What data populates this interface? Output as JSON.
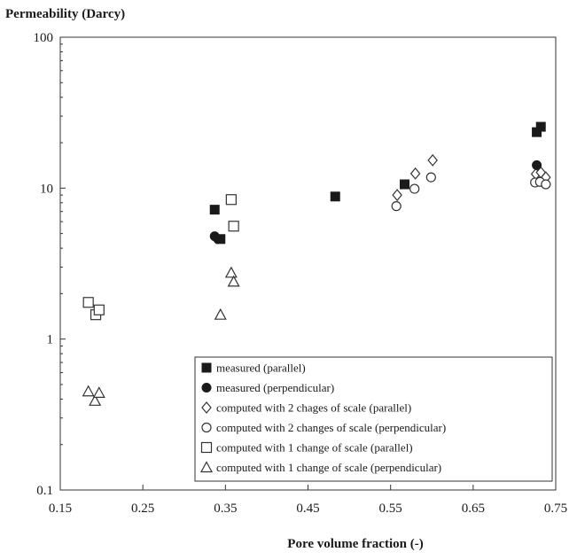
{
  "chart_data": {
    "type": "scatter",
    "title": "",
    "ylabel": "Permeability (Darcy)",
    "xlabel": "Pore volume fraction (-)",
    "xlim": [
      0.15,
      0.75
    ],
    "ylim": [
      0.1,
      100
    ],
    "yscale": "log",
    "grid": false,
    "legend_position": "bottom-right",
    "xticks": [
      "0.15",
      "0.25",
      "0.35",
      "0.45",
      "0.55",
      "0.65",
      "0.75"
    ],
    "yticks": [
      "0.1",
      "1",
      "10",
      "100"
    ],
    "series": [
      {
        "name": "measured (parallel)",
        "marker": "filled-square",
        "points": [
          [
            0.337,
            7.2
          ],
          [
            0.344,
            4.6
          ],
          [
            0.483,
            8.8
          ],
          [
            0.567,
            10.6
          ],
          [
            0.727,
            23.5
          ],
          [
            0.732,
            25.5
          ]
        ]
      },
      {
        "name": "measured (perpendicular)",
        "marker": "filled-circle",
        "points": [
          [
            0.337,
            4.8
          ],
          [
            0.341,
            4.6
          ],
          [
            0.727,
            14.2
          ]
        ]
      },
      {
        "name": "computed with 2 chages of scale (parallel)",
        "marker": "open-diamond",
        "points": [
          [
            0.558,
            9.0
          ],
          [
            0.58,
            12.5
          ],
          [
            0.601,
            15.3
          ],
          [
            0.726,
            12.4
          ],
          [
            0.732,
            12.7
          ],
          [
            0.738,
            11.8
          ]
        ]
      },
      {
        "name": "computed with 2 changes of scale (perpendicular)",
        "marker": "open-circle",
        "points": [
          [
            0.557,
            7.6
          ],
          [
            0.579,
            9.9
          ],
          [
            0.599,
            11.8
          ],
          [
            0.725,
            10.9
          ],
          [
            0.731,
            11.0
          ],
          [
            0.738,
            10.6
          ]
        ]
      },
      {
        "name": "computed with 1 change of scale (parallel)",
        "marker": "open-square",
        "points": [
          [
            0.184,
            1.75
          ],
          [
            0.193,
            1.45
          ],
          [
            0.197,
            1.56
          ],
          [
            0.357,
            8.4
          ],
          [
            0.36,
            5.6
          ]
        ]
      },
      {
        "name": "computed with 1 change of scale (perpendicular)",
        "marker": "open-triangle",
        "points": [
          [
            0.184,
            0.45
          ],
          [
            0.192,
            0.39
          ],
          [
            0.197,
            0.44
          ],
          [
            0.344,
            1.45
          ],
          [
            0.357,
            2.75
          ],
          [
            0.36,
            2.4
          ]
        ]
      }
    ]
  }
}
